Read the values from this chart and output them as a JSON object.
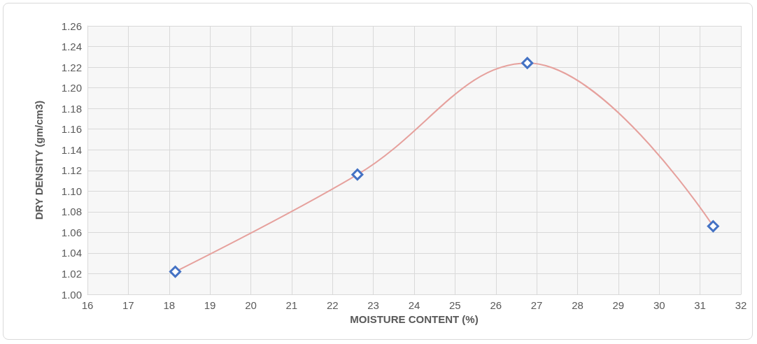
{
  "chart_data": {
    "type": "line",
    "xlabel": "MOISTURE CONTENT (%)",
    "ylabel": "DRY DENSITY (gm/cm3)",
    "x": [
      18.15,
      22.61,
      26.77,
      31.32
    ],
    "series": [
      {
        "color": "#e6a19d",
        "values": [
          1.022,
          1.116,
          1.224,
          1.066
        ]
      }
    ],
    "xlim": [
      16,
      32
    ],
    "xticks": [
      16,
      17,
      18,
      19,
      20,
      21,
      22,
      23,
      24,
      25,
      26,
      27,
      28,
      29,
      30,
      31,
      32
    ],
    "ylim": [
      1.0,
      1.26
    ],
    "yticks": [
      {
        "value": 1.0,
        "label": "1.00"
      },
      {
        "value": 1.02,
        "label": "1.02"
      },
      {
        "value": 1.04,
        "label": "1.04"
      },
      {
        "value": 1.06,
        "label": "1.06"
      },
      {
        "value": 1.08,
        "label": "1.08"
      },
      {
        "value": 1.1,
        "label": "1.10"
      },
      {
        "value": 1.12,
        "label": "1.12"
      },
      {
        "value": 1.14,
        "label": "1.14"
      },
      {
        "value": 1.16,
        "label": "1.16"
      },
      {
        "value": 1.18,
        "label": "1.18"
      },
      {
        "value": 1.2,
        "label": "1.20"
      },
      {
        "value": 1.22,
        "label": "1.22"
      },
      {
        "value": 1.24,
        "label": "1.24"
      },
      {
        "value": 1.26,
        "label": "1.26"
      }
    ],
    "grid": true,
    "marker": "diamond",
    "line_style": "solid"
  }
}
